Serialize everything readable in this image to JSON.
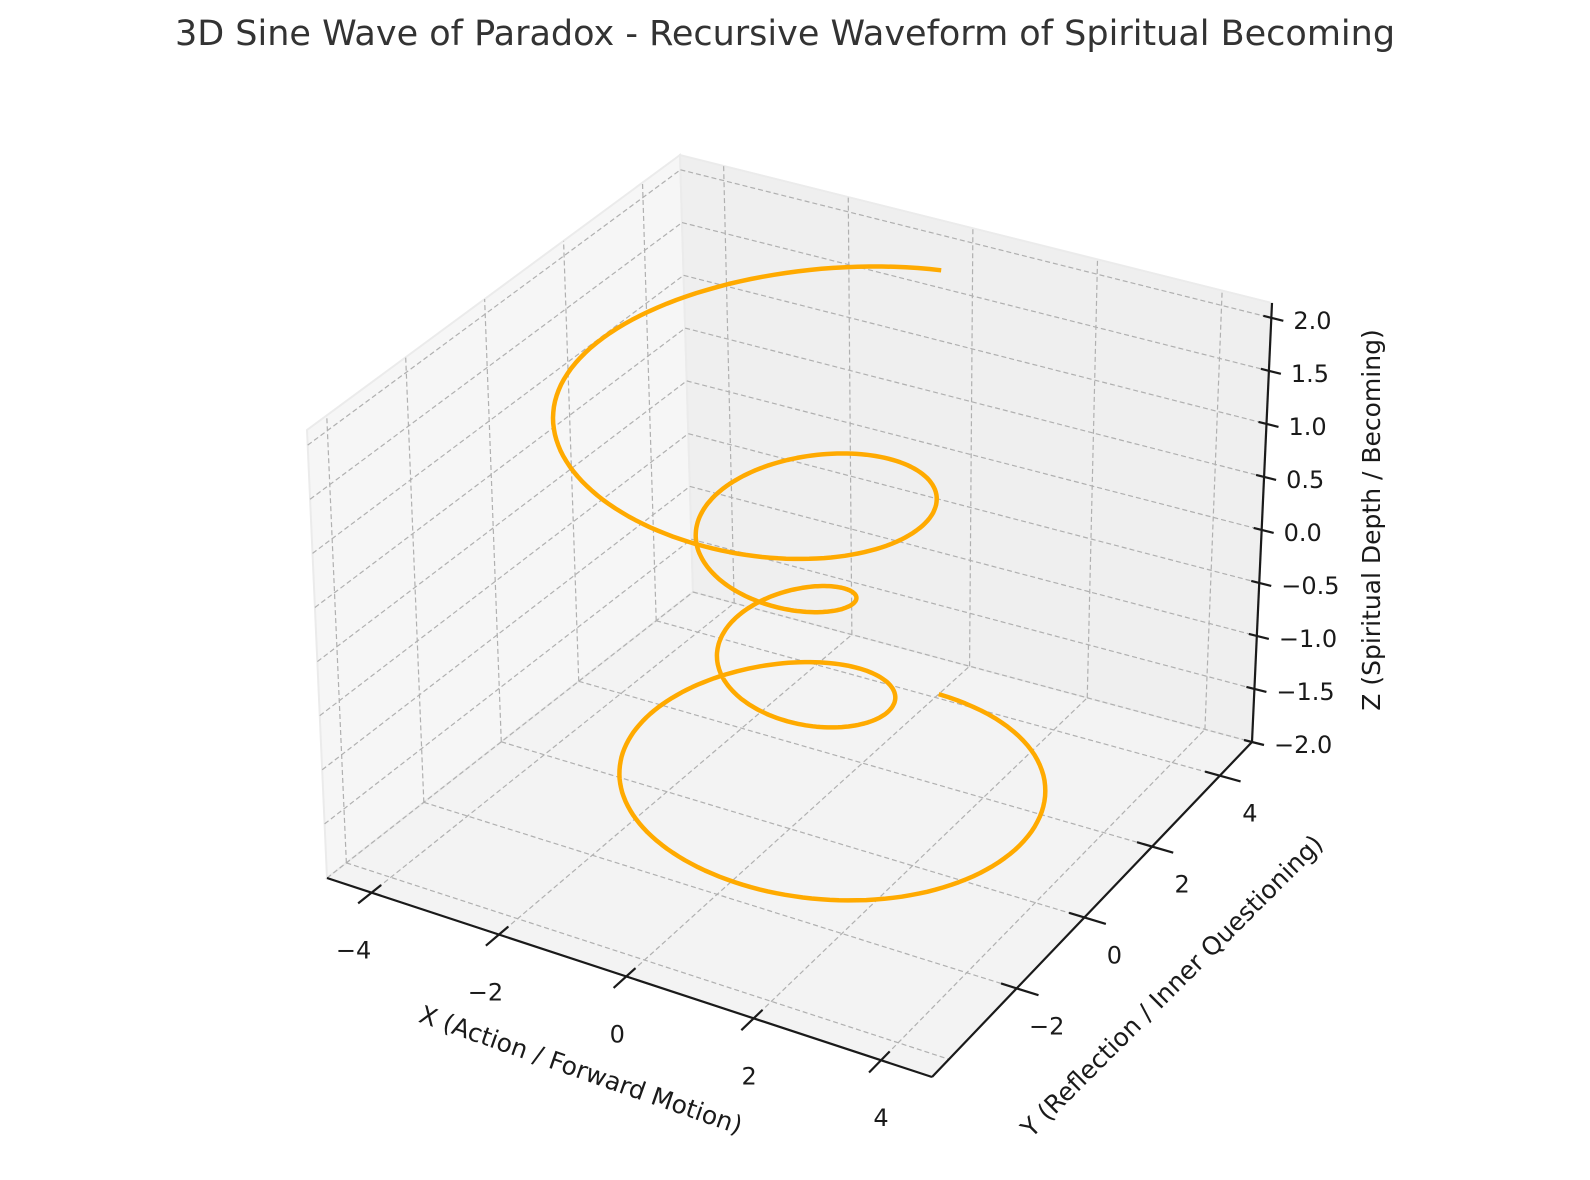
{
  "chart_data": {
    "type": "line",
    "projection": "3d",
    "title": "3D Sine Wave of Paradox - Recursive Waveform of Spiritual Becoming",
    "xlabel": "X (Action / Forward Motion)",
    "ylabel": "Y (Reflection / Inner Questioning)",
    "zlabel": "Z (Spiritual Depth / Becoming)",
    "xlim": [
      -4.7,
      4.8
    ],
    "ylim": [
      -4.5,
      4.95
    ],
    "zlim": [
      -2.0,
      2.14
    ],
    "xticks": [
      -4,
      -2,
      0,
      2,
      4
    ],
    "xtick_labels": [
      "−4",
      "−2",
      "0",
      "2",
      "4"
    ],
    "yticks": [
      -2,
      0,
      2,
      4
    ],
    "ytick_labels": [
      "−2",
      "0",
      "2",
      "4"
    ],
    "zticks": [
      -2.0,
      -1.5,
      -1.0,
      -0.5,
      0.0,
      0.5,
      1.0,
      1.5,
      2.0
    ],
    "ztick_labels": [
      "−2.0",
      "−1.5",
      "−1.0",
      "−0.5",
      "0.0",
      "0.5",
      "1.0",
      "1.5",
      "2.0"
    ],
    "grid": true,
    "series": [
      {
        "name": "spiral",
        "color": "#FFAA00",
        "parametric": {
          "start_angle_deg": 90,
          "turns": 4,
          "z_start": 2.0,
          "z_end": -2.0,
          "radius_poly_in_z": [
            0.9,
            0.0,
            0.8
          ],
          "samples": 600
        }
      }
    ]
  },
  "colors": {
    "pane_left": "#F6F6F6",
    "pane_back": "#EFEFEF",
    "pane_floor": "#F3F3F3",
    "grid": "#B0B0B0",
    "axis": "#1A1A1A"
  }
}
